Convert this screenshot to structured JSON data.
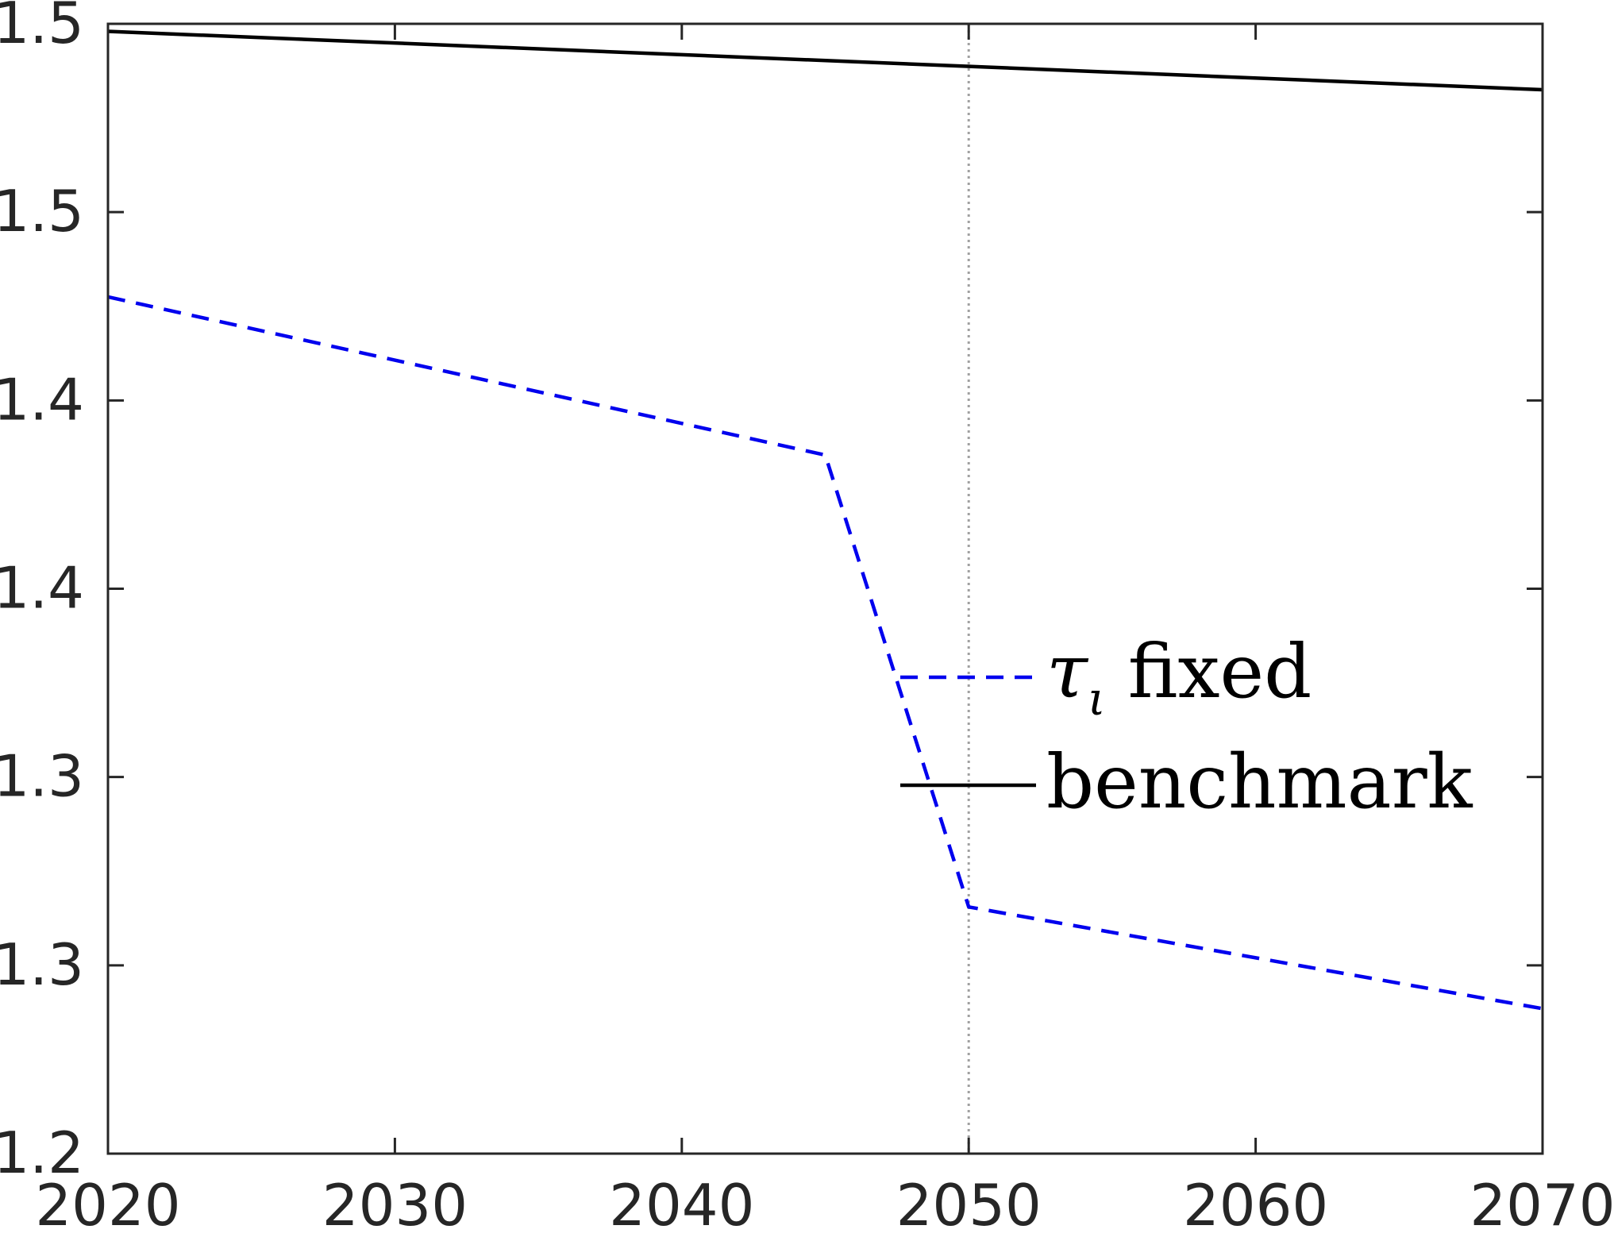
{
  "chart_data": {
    "type": "line",
    "title": "",
    "xlabel": "",
    "ylabel": "",
    "xlim": [
      2020,
      2070
    ],
    "ylim": [
      1.2,
      1.5
    ],
    "x_ticks": [
      2020,
      2030,
      2040,
      2050,
      2060,
      2070
    ],
    "x_tick_labels": [
      "2020",
      "2030",
      "2040",
      "2050",
      "2060",
      "2070"
    ],
    "y_ticks": [
      1.2,
      1.25,
      1.3,
      1.35,
      1.4,
      1.45,
      1.5
    ],
    "y_tick_labels": [
      "1.2",
      "1.3",
      "1.3",
      "1.4",
      "1.4",
      "1.5",
      "1.5"
    ],
    "vertical_reference_line": {
      "x": 2050,
      "style": "dotted",
      "color": "#a0a0a0"
    },
    "legend_placement": "center-right",
    "grid": false,
    "series": [
      {
        "name": "τ_ι fixed",
        "legend_symbol": "τ",
        "legend_subscript": "ι",
        "legend_suffix": "fixed",
        "style": "dashed",
        "color": "#0000ee",
        "x": [
          2020,
          2045,
          2050,
          2070
        ],
        "y": [
          1.4275,
          1.3855,
          1.2655,
          1.2385
        ]
      },
      {
        "name": "benchmark",
        "legend_label": "benchmark",
        "style": "solid",
        "color": "#000000",
        "x": [
          2020,
          2070
        ],
        "y": [
          1.498,
          1.4825
        ]
      }
    ]
  }
}
